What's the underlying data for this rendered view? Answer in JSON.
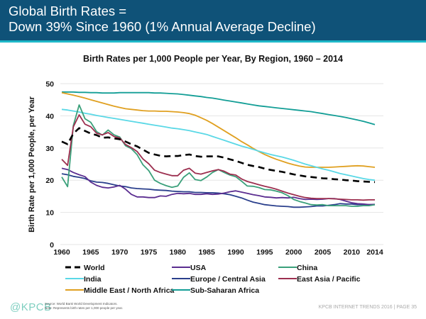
{
  "header": {
    "title_line1": "Global Birth Rates =",
    "title_line2": "Down 39% Since 1960 (1% Annual Average Decline)",
    "background_color": "#0f5278",
    "accent_line_color": "#1fb8c8"
  },
  "footer": {
    "logo": "@KPCB",
    "source_line1": "Source: World Bank World Development Indicators.",
    "source_line2": "Note: Represents birth rates per 1,000 people per year.",
    "page_label": "KPCB INTERNET TRENDS 2016  |  PAGE 35"
  },
  "chart_data": {
    "type": "line",
    "title": "Birth Rates per 1,000 People per Year, By Region, 1960 – 2014",
    "xlabel": "",
    "ylabel": "Birth Rate per 1,000 People, per Year",
    "xlim": [
      1960,
      2014
    ],
    "ylim": [
      0,
      50
    ],
    "grid": true,
    "legend_position": "bottom",
    "x_ticks": [
      "1960",
      "1965",
      "1970",
      "1975",
      "1980",
      "1985",
      "1990",
      "1995",
      "2000",
      "2005",
      "2010",
      "2014"
    ],
    "y_ticks": [
      "0",
      "10",
      "20",
      "30",
      "40",
      "50"
    ],
    "x": [
      1960,
      1961,
      1962,
      1963,
      1964,
      1965,
      1966,
      1967,
      1968,
      1969,
      1970,
      1971,
      1972,
      1973,
      1974,
      1975,
      1976,
      1977,
      1978,
      1979,
      1980,
      1981,
      1982,
      1983,
      1984,
      1985,
      1986,
      1987,
      1988,
      1989,
      1990,
      1991,
      1992,
      1993,
      1994,
      1995,
      1996,
      1997,
      1998,
      1999,
      2000,
      2001,
      2002,
      2003,
      2004,
      2005,
      2006,
      2007,
      2008,
      2009,
      2010,
      2011,
      2012,
      2013,
      2014
    ],
    "series": [
      {
        "name": "World",
        "color": "#000000",
        "dashed": true,
        "values": [
          32.0,
          31.2,
          34.5,
          36.2,
          35.3,
          34.5,
          34.0,
          33.2,
          33.3,
          33.0,
          32.7,
          32.0,
          31.2,
          30.5,
          29.5,
          28.5,
          28.0,
          27.6,
          27.4,
          27.5,
          27.5,
          27.8,
          28.0,
          27.5,
          27.3,
          27.4,
          27.4,
          27.4,
          27.0,
          26.5,
          26.0,
          25.4,
          24.8,
          24.4,
          24.1,
          23.6,
          23.2,
          22.9,
          22.6,
          22.2,
          21.8,
          21.5,
          21.2,
          21.0,
          20.8,
          20.6,
          20.5,
          20.3,
          20.2,
          20.0,
          19.9,
          19.7,
          19.6,
          19.5,
          19.4
        ]
      },
      {
        "name": "USA",
        "color": "#5b2d90",
        "dashed": false,
        "values": [
          23.7,
          23.3,
          22.4,
          21.7,
          21.1,
          19.4,
          18.4,
          17.8,
          17.6,
          17.9,
          18.4,
          17.2,
          15.6,
          14.8,
          14.8,
          14.6,
          14.6,
          15.1,
          15.0,
          15.6,
          15.9,
          15.8,
          15.9,
          15.6,
          15.6,
          15.8,
          15.6,
          15.7,
          16.0,
          16.4,
          16.7,
          16.3,
          15.9,
          15.5,
          15.2,
          14.8,
          14.7,
          14.5,
          14.6,
          14.5,
          14.7,
          14.3,
          14.0,
          14.1,
          14.0,
          14.1,
          14.3,
          14.3,
          14.0,
          13.5,
          13.0,
          12.7,
          12.6,
          12.4,
          12.5
        ]
      },
      {
        "name": "China",
        "color": "#3aa07a",
        "dashed": false,
        "values": [
          21.0,
          18.0,
          37.0,
          43.4,
          39.1,
          38.0,
          35.1,
          34.0,
          35.6,
          34.1,
          33.4,
          30.7,
          29.8,
          27.9,
          24.8,
          23.0,
          20.0,
          19.0,
          18.3,
          17.8,
          18.2,
          20.9,
          22.3,
          20.2,
          19.9,
          21.0,
          22.4,
          23.3,
          22.4,
          21.6,
          21.1,
          19.7,
          18.2,
          18.1,
          17.7,
          17.1,
          17.0,
          16.6,
          16.1,
          15.2,
          14.0,
          13.4,
          12.9,
          12.4,
          12.3,
          12.4,
          12.1,
          12.1,
          12.1,
          12.1,
          11.9,
          11.9,
          12.1,
          12.1,
          12.4
        ]
      },
      {
        "name": "India",
        "color": "#5ad8e6",
        "dashed": false,
        "values": [
          42.0,
          41.8,
          41.5,
          41.2,
          40.8,
          40.5,
          40.1,
          39.8,
          39.5,
          39.2,
          38.9,
          38.6,
          38.3,
          38.0,
          37.7,
          37.4,
          37.1,
          36.8,
          36.5,
          36.2,
          36.0,
          35.7,
          35.4,
          35.0,
          34.6,
          34.2,
          33.6,
          33.0,
          32.4,
          31.8,
          31.2,
          30.6,
          30.1,
          29.6,
          29.0,
          28.5,
          28.0,
          27.6,
          27.2,
          26.7,
          26.2,
          25.6,
          25.0,
          24.5,
          24.0,
          23.5,
          23.1,
          22.6,
          22.1,
          21.7,
          21.3,
          20.9,
          20.5,
          20.2,
          20.0
        ]
      },
      {
        "name": "Europe / Central Asia",
        "color": "#2a3f8c",
        "dashed": false,
        "values": [
          22.0,
          21.7,
          21.2,
          20.9,
          20.5,
          19.8,
          19.4,
          19.3,
          19.0,
          18.6,
          18.2,
          18.0,
          17.6,
          17.4,
          17.3,
          17.2,
          17.0,
          16.9,
          16.8,
          16.6,
          16.5,
          16.4,
          16.4,
          16.2,
          16.2,
          16.1,
          16.1,
          16.0,
          15.8,
          15.5,
          15.0,
          14.5,
          13.8,
          13.2,
          12.8,
          12.4,
          12.2,
          12.0,
          11.9,
          11.8,
          11.6,
          11.6,
          11.7,
          11.8,
          12.0,
          12.0,
          12.2,
          12.4,
          12.7,
          12.6,
          12.6,
          12.4,
          12.5,
          12.4,
          12.4
        ]
      },
      {
        "name": "East Asia / Pacific",
        "color": "#9c2f4f",
        "dashed": false,
        "values": [
          26.5,
          24.6,
          36.6,
          40.3,
          37.4,
          36.6,
          34.6,
          34.1,
          34.8,
          33.6,
          33.1,
          31.1,
          30.1,
          28.9,
          26.6,
          25.1,
          23.1,
          22.4,
          21.9,
          21.4,
          21.4,
          23.1,
          23.7,
          22.2,
          21.9,
          22.4,
          22.9,
          23.3,
          22.8,
          21.9,
          21.6,
          20.4,
          19.6,
          19.1,
          18.6,
          18.1,
          17.7,
          17.2,
          16.6,
          16.0,
          15.5,
          15.0,
          14.6,
          14.4,
          14.3,
          14.3,
          14.3,
          14.2,
          14.1,
          14.0,
          13.9,
          13.9,
          13.8,
          13.9,
          13.9
        ]
      },
      {
        "name": "Middle East / North Africa",
        "color": "#e0a020",
        "dashed": false,
        "values": [
          47.2,
          46.8,
          46.4,
          46.0,
          45.5,
          45.0,
          44.5,
          44.0,
          43.5,
          43.0,
          42.6,
          42.2,
          42.0,
          41.8,
          41.6,
          41.5,
          41.5,
          41.4,
          41.4,
          41.3,
          41.2,
          41.0,
          40.7,
          40.2,
          39.4,
          38.6,
          37.6,
          36.5,
          35.4,
          34.3,
          33.2,
          32.0,
          31.0,
          29.9,
          28.9,
          28.0,
          27.2,
          26.5,
          25.9,
          25.3,
          24.8,
          24.4,
          24.1,
          24.0,
          24.0,
          24.0,
          24.0,
          24.1,
          24.2,
          24.3,
          24.4,
          24.5,
          24.4,
          24.2,
          24.0
        ]
      },
      {
        "name": "Sub-Saharan Africa",
        "color": "#139e96",
        "dashed": false,
        "values": [
          47.4,
          47.4,
          47.4,
          47.3,
          47.3,
          47.2,
          47.2,
          47.1,
          47.1,
          47.1,
          47.2,
          47.2,
          47.2,
          47.2,
          47.2,
          47.2,
          47.1,
          47.1,
          47.0,
          46.9,
          46.8,
          46.6,
          46.4,
          46.2,
          46.0,
          45.7,
          45.5,
          45.2,
          44.9,
          44.6,
          44.3,
          44.0,
          43.7,
          43.4,
          43.1,
          42.9,
          42.7,
          42.5,
          42.3,
          42.1,
          41.9,
          41.7,
          41.5,
          41.3,
          41.0,
          40.7,
          40.4,
          40.1,
          39.8,
          39.5,
          39.1,
          38.7,
          38.3,
          37.8,
          37.3
        ]
      }
    ],
    "legend": [
      {
        "label": "World",
        "series": "World"
      },
      {
        "label": "USA",
        "series": "USA"
      },
      {
        "label": "China",
        "series": "China"
      },
      {
        "label": "India",
        "series": "India"
      },
      {
        "label": "Europe / Central Asia",
        "series": "Europe / Central Asia"
      },
      {
        "label": "East Asia / Pacific",
        "series": "East Asia / Pacific"
      },
      {
        "label": "Middle East / North Africa",
        "series": "Middle East / North Africa"
      },
      {
        "label": "Sub-Saharan Africa",
        "series": "Sub-Saharan Africa"
      }
    ]
  }
}
